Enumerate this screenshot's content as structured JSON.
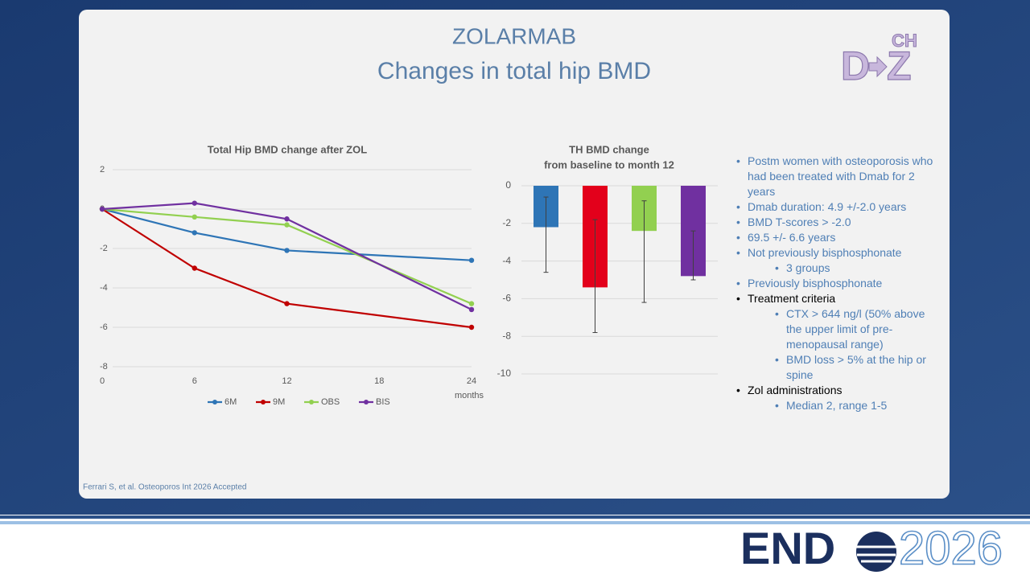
{
  "slide": {
    "title_line1": "ZOLARMAB",
    "title_line2": "Changes in total hip BMD",
    "logo": {
      "top": "CH",
      "left": "D",
      "right": "Z"
    },
    "bullets": [
      {
        "text": "Postm women with osteoporosis who had been treated with Dmab for 2 years",
        "level": 1,
        "color": "#4f7fb5"
      },
      {
        "text": "Dmab duration: 4.9 +/-2.0 years",
        "level": 1,
        "color": "#4f7fb5"
      },
      {
        "text": "BMD T-scores > -2.0",
        "level": 1,
        "color": "#4f7fb5"
      },
      {
        "text": "69.5 +/- 6.6 years",
        "level": 1,
        "color": "#4f7fb5"
      },
      {
        "text": "Not previously bisphosphonate",
        "level": 1,
        "color": "#4f7fb5"
      },
      {
        "text": "3 groups",
        "level": 2,
        "color": "#4f7fb5"
      },
      {
        "text": "Previously bisphosphonate",
        "level": 1,
        "color": "#4f7fb5"
      },
      {
        "text": "Treatment criteria",
        "level": 1,
        "color": "#000000"
      },
      {
        "text": "CTX > 644 ng/l (50% above the upper limit of pre-menopausal range)",
        "level": 2,
        "color": "#4f7fb5"
      },
      {
        "text": "BMD loss > 5% at the hip or spine",
        "level": 2,
        "color": "#4f7fb5"
      },
      {
        "text": "Zol administrations",
        "level": 1,
        "color": "#000000"
      },
      {
        "text": "Median 2, range 1-5",
        "level": 2,
        "color": "#4f7fb5"
      }
    ],
    "citation": "Ferrari S, et al. Osteoporos Int 2026 Accepted",
    "footer": {
      "brand": "END",
      "year": "2026"
    }
  },
  "chart_data": [
    {
      "type": "line",
      "title": "Total Hip BMD change after ZOL",
      "x": [
        0,
        6,
        12,
        24
      ],
      "xlim": [
        0,
        24
      ],
      "xticks": [
        0,
        6,
        12,
        18,
        24
      ],
      "xlabel": "months",
      "ylim": [
        -8,
        2
      ],
      "yticks": [
        -8,
        -6,
        -4,
        -2,
        0,
        2
      ],
      "grid": true,
      "legend": "bottom",
      "series": [
        {
          "name": "6M",
          "color": "#2e75b6",
          "values": [
            0,
            -1.2,
            -2.1,
            -2.6
          ]
        },
        {
          "name": "9M",
          "color": "#c00000",
          "values": [
            0,
            -3.0,
            -4.8,
            -6.0
          ]
        },
        {
          "name": "OBS",
          "color": "#92d050",
          "values": [
            0,
            -0.4,
            -0.8,
            -4.8
          ]
        },
        {
          "name": "BIS",
          "color": "#7030a0",
          "values": [
            0,
            0.3,
            -0.5,
            -5.1
          ]
        }
      ]
    },
    {
      "type": "bar",
      "title": "TH BMD change",
      "subtitle": "from baseline to month 12",
      "categories": [
        null,
        null,
        null,
        null
      ],
      "values": [
        -2.2,
        -5.4,
        -2.4,
        -4.8
      ],
      "error_low": [
        -4.6,
        -7.8,
        -6.2,
        -5.0
      ],
      "error_high": [
        -0.6,
        -1.8,
        -0.8,
        -2.4
      ],
      "colors": [
        "#2e75b6",
        "#e3001b",
        "#92d050",
        "#7030a0"
      ],
      "error_color": "#404040",
      "ylim": [
        -10,
        0
      ],
      "yticks": [
        -10,
        -8,
        -6,
        -4,
        -2,
        0
      ],
      "grid": true
    }
  ]
}
